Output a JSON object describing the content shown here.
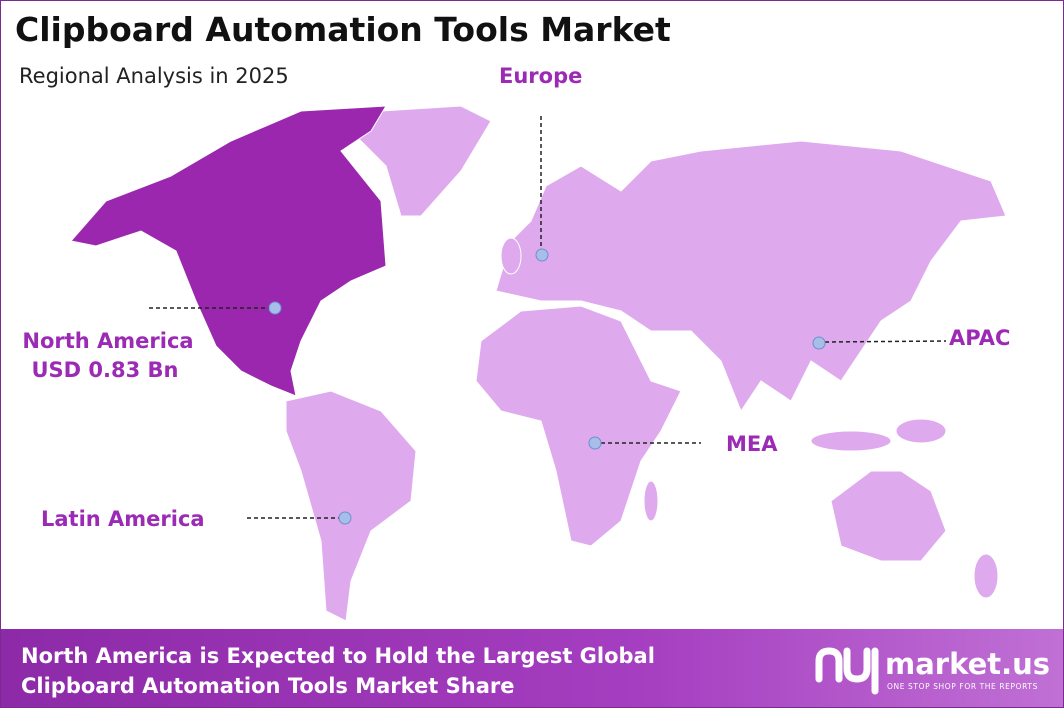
{
  "header": {
    "title": "Clipboard Automation Tools Market",
    "subtitle": "Regional Analysis in 2025"
  },
  "regions": [
    {
      "label": "Europe"
    },
    {
      "label": "North America",
      "value_label": "USD 0.83 Bn"
    },
    {
      "label": "APAC"
    },
    {
      "label": "MEA"
    },
    {
      "label": "Latin America"
    }
  ],
  "footer": {
    "headline": [
      "North America is Expected to Hold the Largest Global",
      "Clipboard Automation Tools Market Share"
    ]
  },
  "logo": {
    "name": "market.us",
    "tagline": "ONE STOP SHOP FOR THE REPORTS"
  }
}
